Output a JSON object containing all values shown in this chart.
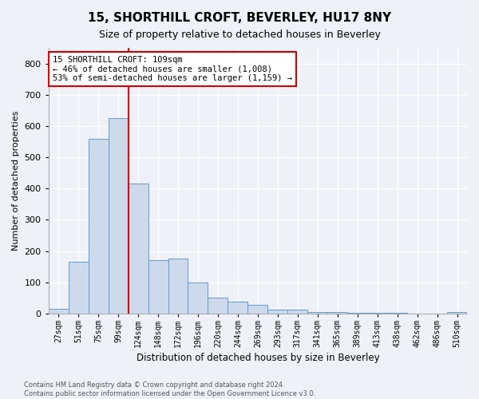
{
  "title_line1": "15, SHORTHILL CROFT, BEVERLEY, HU17 8NY",
  "title_line2": "Size of property relative to detached houses in Beverley",
  "xlabel": "Distribution of detached houses by size in Beverley",
  "ylabel": "Number of detached properties",
  "bar_color": "#ccdaeb",
  "bar_edge_color": "#6699cc",
  "categories": [
    "27sqm",
    "51sqm",
    "75sqm",
    "99sqm",
    "124sqm",
    "148sqm",
    "172sqm",
    "196sqm",
    "220sqm",
    "244sqm",
    "269sqm",
    "293sqm",
    "317sqm",
    "341sqm",
    "365sqm",
    "389sqm",
    "413sqm",
    "438sqm",
    "462sqm",
    "486sqm",
    "510sqm"
  ],
  "values": [
    15,
    165,
    560,
    625,
    415,
    170,
    175,
    100,
    50,
    38,
    28,
    12,
    12,
    5,
    5,
    3,
    3,
    2,
    0,
    0,
    5
  ],
  "ylim": [
    0,
    850
  ],
  "yticks": [
    0,
    100,
    200,
    300,
    400,
    500,
    600,
    700,
    800
  ],
  "vline_x_idx": 3,
  "vline_color": "#cc0000",
  "annotation_text": "15 SHORTHILL CROFT: 109sqm\n← 46% of detached houses are smaller (1,008)\n53% of semi-detached houses are larger (1,159) →",
  "annotation_box_color": "#ffffff",
  "annotation_box_edge": "#cc0000",
  "footer_text": "Contains HM Land Registry data © Crown copyright and database right 2024.\nContains public sector information licensed under the Open Government Licence v3.0.",
  "background_color": "#eef2f8",
  "grid_color": "#d0d8e8",
  "title_fontsize": 11,
  "subtitle_fontsize": 9
}
